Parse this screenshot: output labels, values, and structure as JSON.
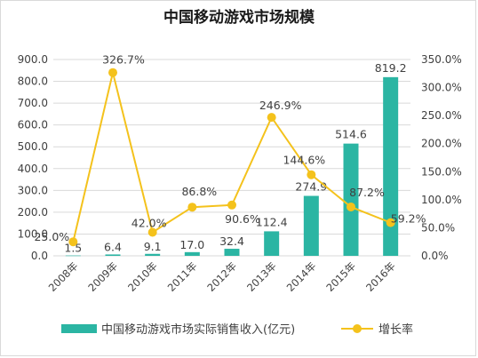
{
  "chart_data": {
    "type": "bar+line",
    "title": "中国移动游戏市场规模",
    "categories": [
      "2008年",
      "2009年",
      "2010年",
      "2011年",
      "2012年",
      "2013年",
      "2014年",
      "2015年",
      "2016年"
    ],
    "series": [
      {
        "name": "中国移动游戏市场实际销售收入(亿元)",
        "type": "bar",
        "axis": "left",
        "color": "#2bb5a3",
        "values": [
          1.5,
          6.4,
          9.1,
          17.0,
          32.4,
          112.4,
          274.9,
          514.6,
          819.2
        ],
        "labels": [
          "1.5",
          "6.4",
          "9.1",
          "17.0",
          "32.4",
          "112.4",
          "274.9",
          "514.6",
          "819.2"
        ]
      },
      {
        "name": "增长率",
        "type": "line",
        "axis": "right",
        "color": "#f4c21c",
        "values": [
          25.0,
          326.7,
          42.0,
          86.8,
          90.6,
          246.9,
          144.6,
          87.2,
          59.2
        ],
        "labels": [
          "25.0%",
          "326.7%",
          "42.0%",
          "86.8%",
          "90.6%",
          "246.9%",
          "144.6%",
          "87.2%",
          "59.2%"
        ]
      }
    ],
    "y_left": {
      "range": [
        0,
        900
      ],
      "ticks": [
        "0.0",
        "100.0",
        "200.0",
        "300.0",
        "400.0",
        "500.0",
        "600.0",
        "700.0",
        "800.0",
        "900.0"
      ]
    },
    "y_right": {
      "range": [
        0,
        350
      ],
      "ticks": [
        "0.0%",
        "50.0%",
        "100.0%",
        "150.0%",
        "200.0%",
        "250.0%",
        "300.0%",
        "350.0%"
      ]
    },
    "grid": true,
    "legend": "bottom"
  }
}
